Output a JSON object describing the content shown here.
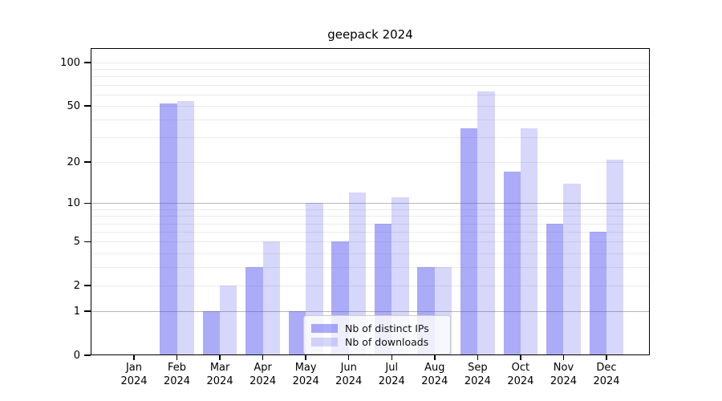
{
  "title": "geepack 2024",
  "chart_data": {
    "type": "bar",
    "title": "geepack 2024",
    "categories": [
      "Jan 2024",
      "Feb 2024",
      "Mar 2024",
      "Apr 2024",
      "May 2024",
      "Jun 2024",
      "Jul 2024",
      "Aug 2024",
      "Sep 2024",
      "Oct 2024",
      "Nov 2024",
      "Dec 2024"
    ],
    "series": [
      {
        "name": "Nb of distinct IPs",
        "color": "rgba(68,68,238,0.45)",
        "values": [
          0,
          52,
          1,
          3,
          1,
          5,
          7,
          3,
          35,
          17,
          7,
          6
        ]
      },
      {
        "name": "Nb of downloads",
        "color": "rgba(68,68,238,0.21)",
        "values": [
          0,
          54,
          2,
          5,
          10,
          12,
          11,
          3,
          63,
          35,
          14,
          21
        ]
      }
    ],
    "xlabel": "",
    "ylabel": "",
    "y_scale": "log1p",
    "ylim": [
      0,
      100
    ],
    "y_ticks": [
      0,
      1,
      2,
      5,
      10,
      20,
      50,
      100
    ],
    "grid": {
      "show": true,
      "orientation": "horizontal",
      "major_values": [
        1,
        10
      ],
      "minor_values": [
        2,
        3,
        4,
        5,
        6,
        7,
        8,
        9,
        20,
        30,
        40,
        50,
        60,
        70,
        80,
        90,
        100
      ],
      "major_color": "#b9b9b9",
      "minor_color": "#ebebeb"
    },
    "legend_position": "inside-bottom-center",
    "axis_color": "#000000",
    "background": "#ffffff"
  }
}
